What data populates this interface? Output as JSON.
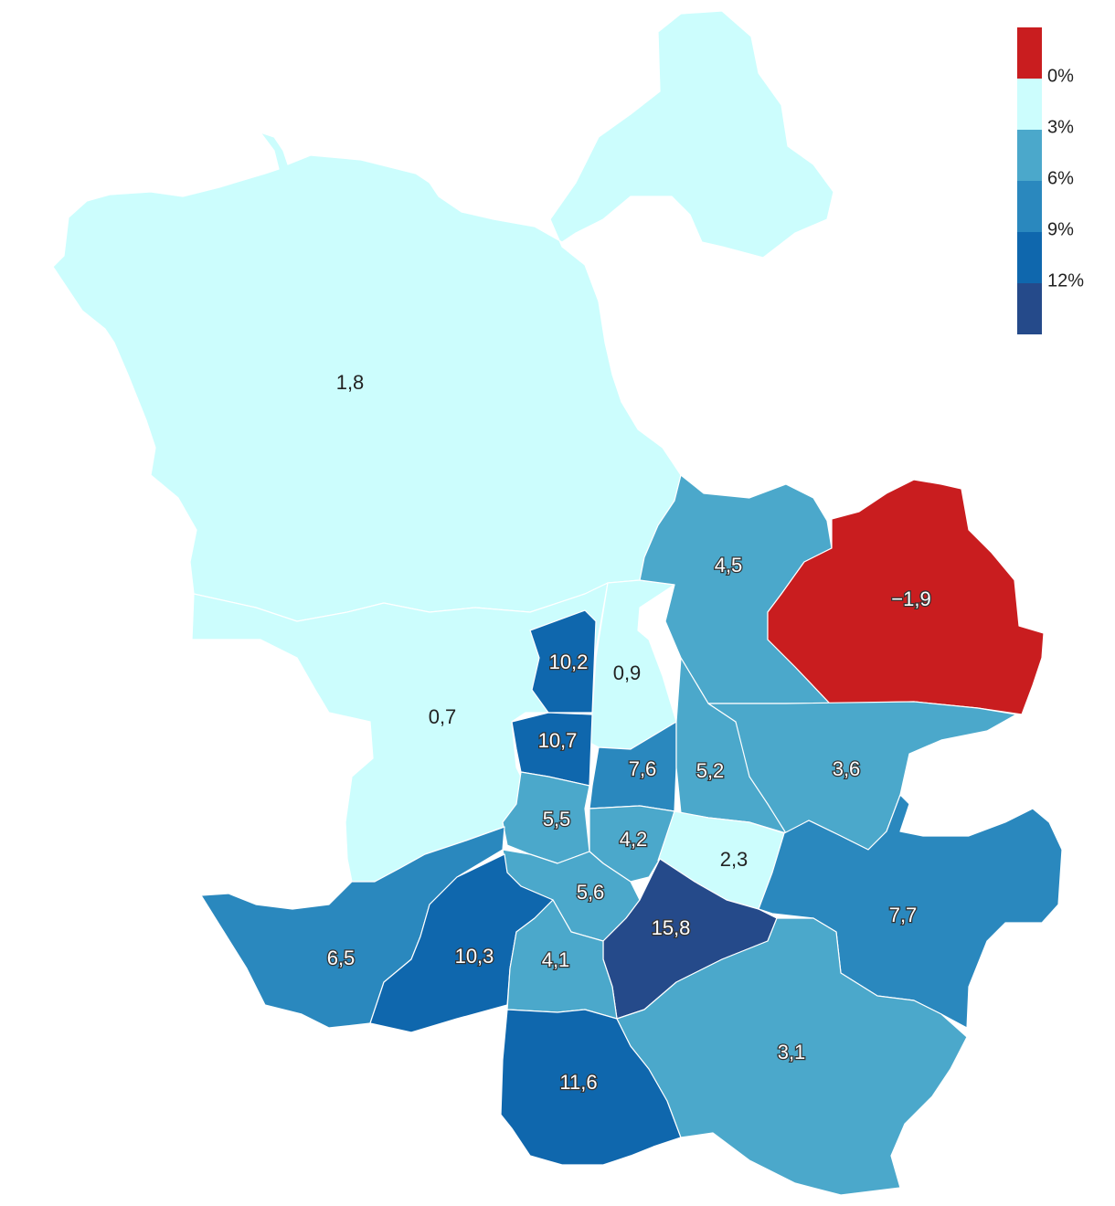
{
  "colors": {
    "negative": "#c91d1f",
    "bin_0_3": "#ccfdfd",
    "bin_3_6": "#4ba8cb",
    "bin_6_9": "#2a88be",
    "bin_9_12": "#0f67ad",
    "bin_12_plus": "#254a8a"
  },
  "legend": {
    "ticks": [
      "0%",
      "3%",
      "6%",
      "9%",
      "12%"
    ],
    "swatches": [
      "negative",
      "bin_0_3",
      "bin_3_6",
      "bin_6_9",
      "bin_9_12",
      "bin_12_plus"
    ]
  },
  "districts": [
    {
      "id": "north-large",
      "value": "1,8",
      "bin": "bin_0_3"
    },
    {
      "id": "west",
      "value": "0,7",
      "bin": "bin_0_3"
    },
    {
      "id": "north-central",
      "value": "0,9",
      "bin": "bin_0_3"
    },
    {
      "id": "center-west-upper",
      "value": "10,2",
      "bin": "bin_9_12"
    },
    {
      "id": "center-west-lower",
      "value": "10,7",
      "bin": "bin_9_12"
    },
    {
      "id": "northeast",
      "value": "4,5",
      "bin": "bin_3_6"
    },
    {
      "id": "far-northeast",
      "value": "−1,9",
      "bin": "negative"
    },
    {
      "id": "center",
      "value": "7,6",
      "bin": "bin_6_9"
    },
    {
      "id": "east-center",
      "value": "5,2",
      "bin": "bin_3_6"
    },
    {
      "id": "east",
      "value": "3,6",
      "bin": "bin_3_6"
    },
    {
      "id": "center-south-west",
      "value": "5,5",
      "bin": "bin_3_6"
    },
    {
      "id": "center-south",
      "value": "4,2",
      "bin": "bin_3_6"
    },
    {
      "id": "south-center-east",
      "value": "2,3",
      "bin": "bin_0_3"
    },
    {
      "id": "south-center",
      "value": "5,6",
      "bin": "bin_3_6"
    },
    {
      "id": "southeast-inner",
      "value": "15,8",
      "bin": "bin_12_plus"
    },
    {
      "id": "far-east",
      "value": "7,7",
      "bin": "bin_6_9"
    },
    {
      "id": "southwest",
      "value": "6,5",
      "bin": "bin_6_9"
    },
    {
      "id": "south-west-inner",
      "value": "10,3",
      "bin": "bin_9_12"
    },
    {
      "id": "south-inner",
      "value": "4,1",
      "bin": "bin_3_6"
    },
    {
      "id": "south",
      "value": "11,6",
      "bin": "bin_9_12"
    },
    {
      "id": "southeast",
      "value": "3,1",
      "bin": "bin_3_6"
    }
  ]
}
